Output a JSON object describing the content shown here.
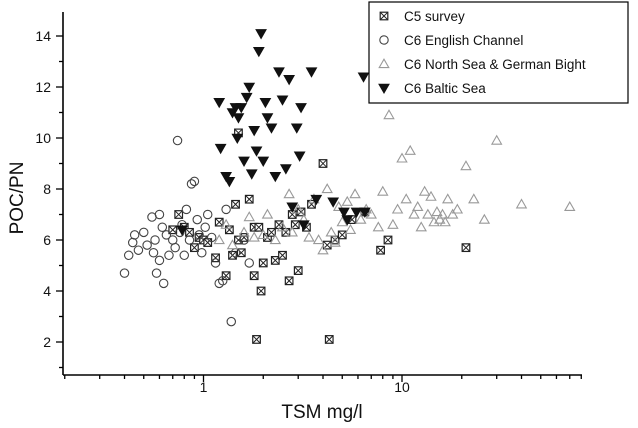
{
  "chart_data": {
    "type": "scatter",
    "xlabel": "TSM mg/l",
    "ylabel": "POC/PN",
    "xscale": "log",
    "xlim": [
      0.2,
      80
    ],
    "ylim": [
      1,
      15
    ],
    "x_tick_labels": [
      "1",
      "10"
    ],
    "y_tick_labels": [
      "2",
      "4",
      "6",
      "8",
      "10",
      "12",
      "14"
    ],
    "legend_position": "top-right",
    "grid": false,
    "series": [
      {
        "name": "C5 survey",
        "marker": "boxed-x",
        "color": "#222222",
        "points": [
          [
            0.7,
            6.4
          ],
          [
            0.75,
            7.0
          ],
          [
            0.8,
            6.5
          ],
          [
            0.85,
            6.3
          ],
          [
            0.9,
            5.7
          ],
          [
            0.95,
            6.1
          ],
          [
            1.0,
            6.0
          ],
          [
            1.05,
            5.9
          ],
          [
            1.15,
            5.3
          ],
          [
            1.2,
            6.7
          ],
          [
            1.3,
            4.6
          ],
          [
            1.35,
            6.4
          ],
          [
            1.4,
            5.4
          ],
          [
            1.45,
            7.4
          ],
          [
            1.5,
            6.0
          ],
          [
            1.5,
            10.2
          ],
          [
            1.55,
            5.5
          ],
          [
            1.6,
            6.1
          ],
          [
            1.7,
            7.6
          ],
          [
            1.8,
            4.6
          ],
          [
            1.8,
            6.5
          ],
          [
            1.85,
            2.1
          ],
          [
            1.9,
            6.5
          ],
          [
            1.95,
            4.0
          ],
          [
            2.0,
            5.1
          ],
          [
            2.1,
            6.1
          ],
          [
            2.2,
            6.3
          ],
          [
            2.3,
            5.2
          ],
          [
            2.4,
            6.6
          ],
          [
            2.5,
            5.4
          ],
          [
            2.6,
            6.3
          ],
          [
            2.7,
            4.4
          ],
          [
            2.8,
            7.0
          ],
          [
            2.9,
            6.6
          ],
          [
            3.0,
            4.8
          ],
          [
            3.1,
            7.1
          ],
          [
            3.3,
            6.5
          ],
          [
            3.5,
            7.4
          ],
          [
            4.0,
            9.0
          ],
          [
            4.2,
            5.8
          ],
          [
            4.3,
            2.1
          ],
          [
            4.6,
            6.0
          ],
          [
            5.0,
            6.2
          ],
          [
            5.6,
            6.8
          ],
          [
            6.5,
            7.1
          ],
          [
            7.8,
            5.6
          ],
          [
            8.5,
            6.0
          ],
          [
            21,
            5.7
          ]
        ]
      },
      {
        "name": "C6 English Channel",
        "marker": "circle",
        "color": "#444444",
        "points": [
          [
            0.4,
            4.7
          ],
          [
            0.42,
            5.4
          ],
          [
            0.44,
            5.9
          ],
          [
            0.45,
            6.2
          ],
          [
            0.47,
            5.6
          ],
          [
            0.5,
            6.3
          ],
          [
            0.52,
            5.8
          ],
          [
            0.55,
            6.9
          ],
          [
            0.56,
            5.5
          ],
          [
            0.57,
            6.0
          ],
          [
            0.58,
            4.7
          ],
          [
            0.6,
            7.0
          ],
          [
            0.6,
            5.2
          ],
          [
            0.62,
            6.5
          ],
          [
            0.63,
            4.3
          ],
          [
            0.65,
            6.2
          ],
          [
            0.67,
            5.4
          ],
          [
            0.7,
            6.0
          ],
          [
            0.72,
            5.7
          ],
          [
            0.74,
            9.9
          ],
          [
            0.76,
            6.3
          ],
          [
            0.78,
            6.6
          ],
          [
            0.8,
            5.4
          ],
          [
            0.82,
            7.2
          ],
          [
            0.85,
            6.0
          ],
          [
            0.87,
            8.2
          ],
          [
            0.9,
            8.3
          ],
          [
            0.93,
            6.8
          ],
          [
            0.95,
            6.2
          ],
          [
            0.98,
            5.5
          ],
          [
            1.02,
            6.5
          ],
          [
            1.05,
            7.0
          ],
          [
            1.1,
            6.1
          ],
          [
            1.15,
            5.1
          ],
          [
            1.2,
            4.3
          ],
          [
            1.25,
            4.4
          ],
          [
            1.3,
            7.2
          ],
          [
            1.38,
            2.8
          ],
          [
            1.45,
            5.5
          ],
          [
            1.6,
            6.0
          ],
          [
            1.7,
            5.1
          ]
        ]
      },
      {
        "name": "C6 North Sea & German Bight",
        "marker": "triangle-up-open",
        "color": "#999999",
        "points": [
          [
            1.2,
            6.0
          ],
          [
            1.3,
            6.6
          ],
          [
            1.4,
            5.8
          ],
          [
            1.6,
            6.3
          ],
          [
            1.7,
            6.9
          ],
          [
            1.8,
            6.1
          ],
          [
            2.0,
            6.2
          ],
          [
            2.1,
            7.0
          ],
          [
            2.3,
            6.0
          ],
          [
            2.5,
            6.5
          ],
          [
            2.7,
            7.8
          ],
          [
            2.8,
            6.3
          ],
          [
            3.0,
            7.2
          ],
          [
            3.2,
            6.8
          ],
          [
            3.4,
            6.1
          ],
          [
            3.6,
            7.6
          ],
          [
            3.8,
            6.0
          ],
          [
            4.0,
            5.6
          ],
          [
            4.2,
            8.0
          ],
          [
            4.4,
            6.3
          ],
          [
            4.6,
            5.9
          ],
          [
            4.8,
            7.3
          ],
          [
            5.0,
            6.7
          ],
          [
            5.3,
            7.5
          ],
          [
            5.5,
            6.4
          ],
          [
            5.8,
            7.8
          ],
          [
            6.2,
            6.8
          ],
          [
            6.6,
            7.2
          ],
          [
            7.0,
            7.0
          ],
          [
            7.6,
            6.5
          ],
          [
            8.0,
            7.9
          ],
          [
            8.6,
            10.9
          ],
          [
            9.0,
            6.6
          ],
          [
            9.5,
            7.2
          ],
          [
            10.0,
            9.2
          ],
          [
            10.5,
            7.6
          ],
          [
            11,
            9.5
          ],
          [
            11.5,
            7.0
          ],
          [
            12,
            7.3
          ],
          [
            12.5,
            6.5
          ],
          [
            13,
            7.9
          ],
          [
            13.5,
            7.0
          ],
          [
            14,
            7.7
          ],
          [
            14.5,
            6.7
          ],
          [
            15,
            7.1
          ],
          [
            15.5,
            6.8
          ],
          [
            16,
            7.0
          ],
          [
            16.5,
            6.7
          ],
          [
            17,
            7.6
          ],
          [
            18,
            7.0
          ],
          [
            19,
            7.2
          ],
          [
            21,
            8.9
          ],
          [
            23,
            7.6
          ],
          [
            26,
            6.8
          ],
          [
            30,
            9.9
          ],
          [
            40,
            7.4
          ],
          [
            70,
            7.3
          ]
        ]
      },
      {
        "name": "C6 Baltic Sea",
        "marker": "triangle-down-filled",
        "color": "#111111",
        "points": [
          [
            0.78,
            6.4
          ],
          [
            1.2,
            11.4
          ],
          [
            1.22,
            9.6
          ],
          [
            1.3,
            8.5
          ],
          [
            1.35,
            8.3
          ],
          [
            1.4,
            11.0
          ],
          [
            1.45,
            11.2
          ],
          [
            1.48,
            10.0
          ],
          [
            1.5,
            10.8
          ],
          [
            1.55,
            11.2
          ],
          [
            1.6,
            9.1
          ],
          [
            1.65,
            11.6
          ],
          [
            1.7,
            12.0
          ],
          [
            1.75,
            8.6
          ],
          [
            1.8,
            10.3
          ],
          [
            1.85,
            9.5
          ],
          [
            1.9,
            13.4
          ],
          [
            1.95,
            14.1
          ],
          [
            2.0,
            9.1
          ],
          [
            2.05,
            11.4
          ],
          [
            2.1,
            10.8
          ],
          [
            2.2,
            10.4
          ],
          [
            2.3,
            8.5
          ],
          [
            2.4,
            12.6
          ],
          [
            2.5,
            11.5
          ],
          [
            2.6,
            8.8
          ],
          [
            2.7,
            12.3
          ],
          [
            2.8,
            7.3
          ],
          [
            2.95,
            10.4
          ],
          [
            3.05,
            9.3
          ],
          [
            3.1,
            11.2
          ],
          [
            3.2,
            6.6
          ],
          [
            3.5,
            12.6
          ],
          [
            3.7,
            7.6
          ],
          [
            4.5,
            7.5
          ],
          [
            5.1,
            7.1
          ],
          [
            5.3,
            6.8
          ],
          [
            5.9,
            7.1
          ],
          [
            6.4,
            12.4
          ],
          [
            6.5,
            7.1
          ]
        ]
      }
    ]
  }
}
